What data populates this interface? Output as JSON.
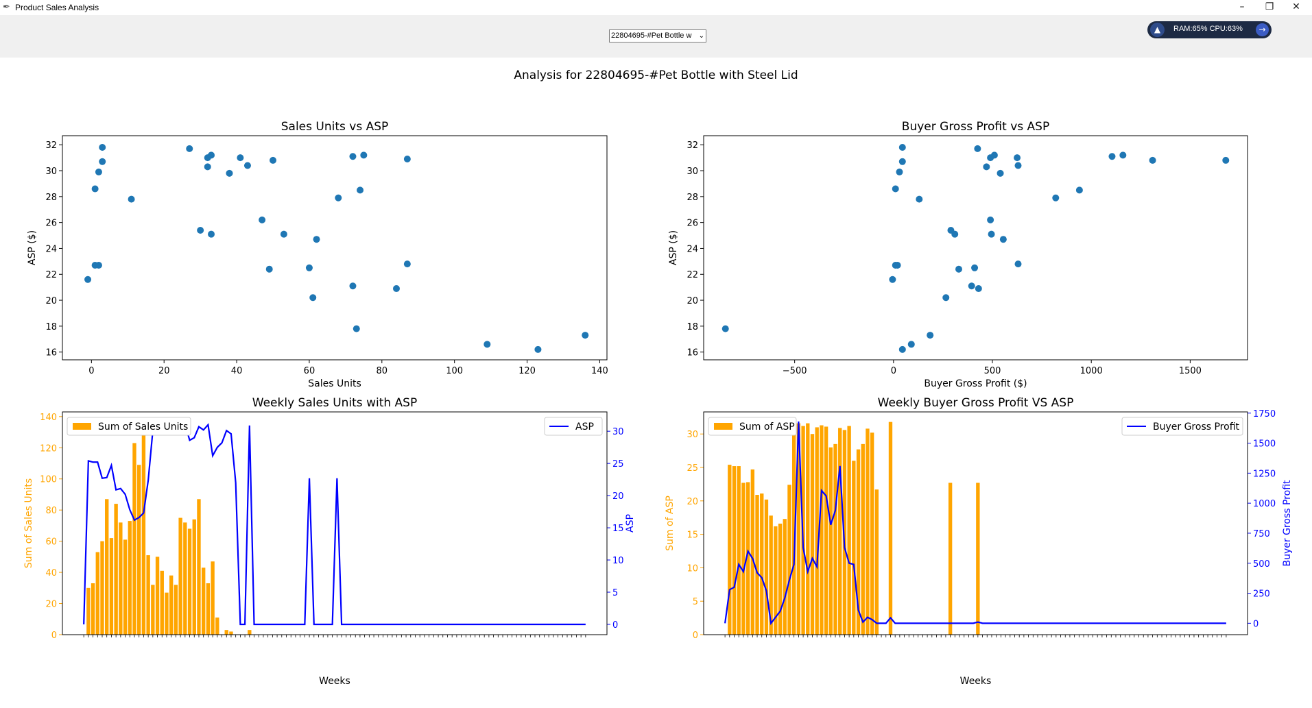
{
  "window": {
    "title": "Product Sales Analysis",
    "min_glyph": "–",
    "max_glyph": "❐",
    "close_glyph": "✕"
  },
  "selector": {
    "value": "22804695-#Pet Bottle w"
  },
  "monitor": {
    "text": "RAM:65% CPU:63%"
  },
  "figure_title": "Analysis for 22804695-#Pet Bottle with Steel Lid",
  "colors": {
    "scatter": "#1f77b4",
    "bar": "#ffa500",
    "line": "#0000ff"
  },
  "chart_data": [
    {
      "type": "scatter",
      "title": "Sales Units vs ASP",
      "xlabel": "Sales Units",
      "ylabel": "ASP ($)",
      "xlim": [
        -8,
        142
      ],
      "ylim": [
        32.7,
        15.4
      ],
      "y_inverted": true,
      "xticks": [
        0,
        20,
        40,
        60,
        80,
        100,
        120,
        140
      ],
      "yticks": [
        16,
        18,
        20,
        22,
        24,
        26,
        28,
        30,
        32
      ],
      "points": [
        [
          109,
          16.6
        ],
        [
          123,
          16.2
        ],
        [
          136,
          17.3
        ],
        [
          73,
          17.8
        ],
        [
          61,
          20.2
        ],
        [
          72,
          21.1
        ],
        [
          84,
          20.9
        ],
        [
          -1,
          21.6
        ],
        [
          1,
          22.7
        ],
        [
          2,
          22.7
        ],
        [
          49,
          22.4
        ],
        [
          60,
          22.5
        ],
        [
          87,
          22.8
        ],
        [
          62,
          24.7
        ],
        [
          53,
          25.1
        ],
        [
          33,
          25.1
        ],
        [
          30,
          25.4
        ],
        [
          47,
          26.2
        ],
        [
          11,
          27.8
        ],
        [
          68,
          27.9
        ],
        [
          1,
          28.6
        ],
        [
          74,
          28.5
        ],
        [
          2,
          29.9
        ],
        [
          38,
          29.8
        ],
        [
          32,
          30.3
        ],
        [
          43,
          30.4
        ],
        [
          3,
          30.7
        ],
        [
          50,
          30.8
        ],
        [
          87,
          30.9
        ],
        [
          32,
          31.0
        ],
        [
          41,
          31.0
        ],
        [
          33,
          31.2
        ],
        [
          72,
          31.1
        ],
        [
          75,
          31.2
        ],
        [
          3,
          31.8
        ],
        [
          27,
          31.7
        ]
      ]
    },
    {
      "type": "scatter",
      "title": "Buyer Gross Profit vs ASP",
      "xlabel": "Buyer Gross Profit ($)",
      "ylabel": "ASP ($)",
      "xlim": [
        -960,
        1790
      ],
      "ylim": [
        32.7,
        15.4
      ],
      "y_inverted": true,
      "xticks": [
        -500,
        0,
        500,
        1000,
        1500
      ],
      "yticks": [
        16,
        18,
        20,
        22,
        24,
        26,
        28,
        30,
        32
      ],
      "points": [
        [
          45,
          16.2
        ],
        [
          90,
          16.6
        ],
        [
          185,
          17.3
        ],
        [
          -850,
          17.8
        ],
        [
          265,
          20.2
        ],
        [
          395,
          21.1
        ],
        [
          430,
          20.9
        ],
        [
          -5,
          21.6
        ],
        [
          10,
          22.7
        ],
        [
          20,
          22.7
        ],
        [
          330,
          22.4
        ],
        [
          410,
          22.5
        ],
        [
          630,
          22.8
        ],
        [
          555,
          24.7
        ],
        [
          495,
          25.1
        ],
        [
          310,
          25.1
        ],
        [
          290,
          25.4
        ],
        [
          490,
          26.2
        ],
        [
          130,
          27.8
        ],
        [
          820,
          27.9
        ],
        [
          10,
          28.6
        ],
        [
          940,
          28.5
        ],
        [
          30,
          29.9
        ],
        [
          540,
          29.8
        ],
        [
          470,
          30.3
        ],
        [
          630,
          30.4
        ],
        [
          45,
          30.7
        ],
        [
          1310,
          30.8
        ],
        [
          1680,
          30.8
        ],
        [
          490,
          31.0
        ],
        [
          625,
          31.0
        ],
        [
          510,
          31.2
        ],
        [
          1105,
          31.1
        ],
        [
          1160,
          31.2
        ],
        [
          45,
          31.8
        ],
        [
          425,
          31.7
        ]
      ]
    },
    {
      "type": "bar",
      "title": "Weekly Sales Units with ASP",
      "xlabel": "Weeks",
      "ylabel": "Sum of Sales Units",
      "ylabel_right": "ASP",
      "legend_left": "Sum of Sales Units",
      "legend_right": "ASP",
      "ylim": [
        0,
        143
      ],
      "ylim_right": [
        -1.6,
        33
      ],
      "yticks": [
        0,
        20,
        40,
        60,
        80,
        100,
        120,
        140
      ],
      "yticks_right": [
        0,
        5,
        10,
        15,
        20,
        25,
        30
      ],
      "n_weeks": 110,
      "bar_values": [
        0,
        30,
        33,
        53,
        60,
        87,
        62,
        84,
        72,
        61,
        73,
        123,
        109,
        128,
        51,
        32,
        50,
        41,
        27,
        38,
        32,
        75,
        72,
        68,
        74,
        87,
        43,
        33,
        47,
        11,
        0,
        3,
        2,
        0,
        0,
        0,
        3,
        0,
        0,
        0,
        0,
        0,
        0,
        0,
        0,
        0,
        0,
        0,
        0,
        0,
        0,
        0,
        0,
        0,
        0,
        0,
        0,
        0,
        0,
        0,
        0,
        0,
        0,
        0,
        0,
        0,
        0,
        0,
        0,
        0,
        0,
        0,
        0,
        0,
        0,
        0,
        0,
        0,
        0,
        0,
        0,
        0,
        0,
        0,
        0,
        0,
        0,
        0,
        0,
        0,
        0,
        0,
        0,
        0,
        0,
        0,
        0,
        0,
        0,
        0,
        0,
        0,
        0,
        0,
        0,
        0,
        0,
        0,
        0,
        0
      ],
      "line_values": [
        0,
        25.4,
        25.2,
        25.2,
        22.7,
        22.8,
        24.7,
        20.9,
        21.1,
        20.2,
        17.8,
        16.2,
        16.6,
        17.3,
        22.4,
        30.1,
        30.5,
        30.8,
        31.1,
        29.9,
        30.9,
        31.2,
        31.1,
        28.6,
        29.0,
        30.7,
        30.2,
        31.0,
        26.2,
        27.5,
        28.2,
        30.1,
        29.6,
        22.0,
        0,
        0,
        30.9,
        0,
        0,
        0,
        0,
        0,
        0,
        0,
        0,
        0,
        0,
        0,
        0,
        22.7,
        0,
        0,
        0,
        0,
        0,
        22.7,
        0,
        0,
        0,
        0,
        0,
        0,
        0,
        0,
        0,
        0,
        0,
        0,
        0,
        0,
        0,
        0,
        0,
        0,
        0,
        0,
        0,
        0,
        0,
        0,
        0,
        0,
        0,
        0,
        0,
        0,
        0,
        0,
        0,
        0,
        0,
        0,
        0,
        0,
        0,
        0,
        0,
        0,
        0,
        0,
        0,
        0,
        0,
        0,
        0,
        0,
        0,
        0,
        0,
        0
      ]
    },
    {
      "type": "bar",
      "title": "Weekly Buyer Gross Profit VS ASP",
      "xlabel": "Weeks",
      "ylabel": "Sum of ASP",
      "ylabel_right": "Buyer Gross Profit",
      "legend_left": "Sum of ASP",
      "legend_right": "Buyer Gross Profit",
      "ylim": [
        0,
        33.3
      ],
      "ylim_right": [
        -95,
        1760
      ],
      "yticks": [
        0,
        5,
        10,
        15,
        20,
        25,
        30
      ],
      "yticks_right": [
        0,
        250,
        500,
        750,
        1000,
        1250,
        1500,
        1750
      ],
      "n_weeks": 110,
      "bar_values": [
        0,
        25.4,
        25.2,
        25.2,
        22.7,
        22.8,
        24.7,
        20.9,
        21.1,
        20.2,
        17.8,
        16.2,
        16.6,
        17.3,
        22.4,
        30.4,
        31.6,
        31.2,
        31.6,
        30.0,
        31.0,
        31.3,
        31.1,
        28.0,
        28.5,
        30.9,
        30.6,
        31.2,
        26.0,
        27.7,
        28.5,
        30.8,
        30.2,
        21.7,
        0,
        0,
        31.8,
        0,
        0,
        0,
        0,
        0,
        0,
        0,
        0,
        0,
        0,
        0,
        0,
        22.7,
        0,
        0,
        0,
        0,
        0,
        22.7,
        0,
        0,
        0,
        0,
        0,
        0,
        0,
        0,
        0,
        0,
        0,
        0,
        0,
        0,
        0,
        0,
        0,
        0,
        0,
        0,
        0,
        0,
        0,
        0,
        0,
        0,
        0,
        0,
        0,
        0,
        0,
        0,
        0,
        0,
        0,
        0,
        0,
        0,
        0,
        0,
        0,
        0,
        0,
        0,
        0,
        0,
        0,
        0,
        0,
        0,
        0,
        0,
        0,
        0
      ],
      "line_values": [
        0,
        280,
        300,
        490,
        430,
        600,
        540,
        420,
        380,
        270,
        0,
        50,
        100,
        210,
        360,
        490,
        1680,
        630,
        430,
        540,
        470,
        1105,
        1060,
        820,
        940,
        1310,
        630,
        500,
        490,
        110,
        10,
        50,
        30,
        0,
        0,
        0,
        45,
        0,
        0,
        0,
        0,
        0,
        0,
        0,
        0,
        0,
        0,
        0,
        0,
        0,
        0,
        0,
        0,
        0,
        0,
        10,
        0,
        0,
        0,
        0,
        0,
        0,
        0,
        0,
        0,
        0,
        0,
        0,
        0,
        0,
        0,
        0,
        0,
        0,
        0,
        0,
        0,
        0,
        0,
        0,
        0,
        0,
        0,
        0,
        0,
        0,
        0,
        0,
        0,
        0,
        0,
        0,
        0,
        0,
        0,
        0,
        0,
        0,
        0,
        0,
        0,
        0,
        0,
        0,
        0,
        0,
        0,
        0,
        0,
        0
      ]
    }
  ]
}
